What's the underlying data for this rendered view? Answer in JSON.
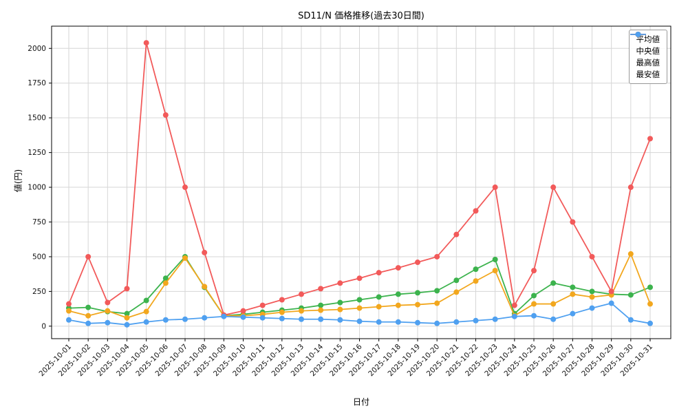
{
  "title": "SD11/N 価格推移(過去30日間)",
  "xlabel": "日付",
  "ylabel": "値(円)",
  "chart_data": {
    "type": "line",
    "title": "SD11/N 価格推移(過去30日間)",
    "xlabel": "日付",
    "ylabel": "値(円)",
    "grid": true,
    "legend_position": "upper right",
    "yticks": [
      0,
      250,
      500,
      750,
      1000,
      1250,
      1500,
      1750,
      2000
    ],
    "ylim": [
      -90,
      2160
    ],
    "x": [
      "2025-10-01",
      "2025-10-02",
      "2025-10-03",
      "2025-10-04",
      "2025-10-05",
      "2025-10-06",
      "2025-10-07",
      "2025-10-08",
      "2025-10-09",
      "2025-10-10",
      "2025-10-11",
      "2025-10-12",
      "2025-10-13",
      "2025-10-14",
      "2025-10-15",
      "2025-10-16",
      "2025-10-17",
      "2025-10-18",
      "2025-10-19",
      "2025-10-20",
      "2025-10-21",
      "2025-10-22",
      "2025-10-23",
      "2025-10-24",
      "2025-10-25",
      "2025-10-26",
      "2025-10-27",
      "2025-10-28",
      "2025-10-29",
      "2025-10-30",
      "2025-10-31"
    ],
    "series": [
      {
        "name": "平均値",
        "color": "#3cb34d",
        "values": [
          130,
          135,
          105,
          90,
          185,
          345,
          500,
          280,
          75,
          85,
          100,
          115,
          130,
          150,
          170,
          190,
          210,
          230,
          240,
          255,
          330,
          410,
          480,
          90,
          220,
          310,
          280,
          250,
          230,
          225,
          280
        ]
      },
      {
        "name": "中央値",
        "color": "#f2a71e",
        "values": [
          110,
          75,
          110,
          60,
          105,
          310,
          490,
          285,
          75,
          75,
          85,
          100,
          110,
          115,
          120,
          130,
          140,
          150,
          155,
          165,
          245,
          325,
          400,
          75,
          160,
          160,
          230,
          210,
          225,
          520,
          160
        ]
      },
      {
        "name": "最高値",
        "color": "#f25a5a",
        "values": [
          160,
          500,
          170,
          270,
          2040,
          1520,
          1000,
          530,
          80,
          110,
          150,
          190,
          230,
          270,
          310,
          345,
          385,
          420,
          460,
          500,
          660,
          830,
          1000,
          150,
          400,
          1000,
          750,
          500,
          250,
          1000,
          1350
        ]
      },
      {
        "name": "最安値",
        "color": "#4fa0f0",
        "values": [
          45,
          20,
          25,
          10,
          30,
          45,
          50,
          60,
          70,
          65,
          60,
          55,
          50,
          50,
          45,
          35,
          30,
          30,
          25,
          20,
          30,
          40,
          50,
          70,
          75,
          50,
          90,
          130,
          165,
          45,
          20
        ]
      }
    ]
  }
}
